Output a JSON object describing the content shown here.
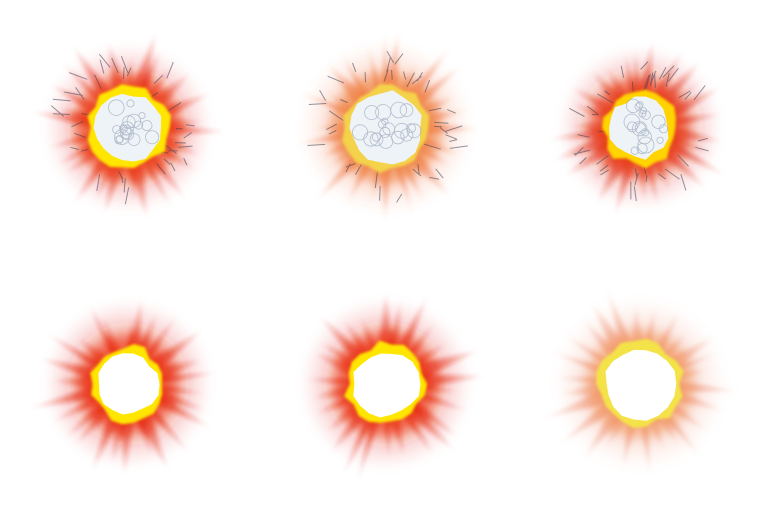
{
  "sprite_sheet": {
    "rows": 2,
    "columns": 3,
    "background": "#ffffff",
    "frames": [
      {
        "style": "textured-core",
        "glow": "#e21b0c",
        "mid": "#f04a14",
        "hot": "#ffe600",
        "core": "#eef3f8",
        "crackle": "#3b3f55",
        "texture": true
      },
      {
        "style": "textured-core",
        "glow": "#ef6b3a",
        "mid": "#f08a45",
        "hot": "#f4d24a",
        "core": "#eef3f8",
        "crackle": "#3b3f55",
        "texture": true
      },
      {
        "style": "textured-core",
        "glow": "#dd2010",
        "mid": "#ee4818",
        "hot": "#ffd400",
        "core": "#eef3f8",
        "crackle": "#3b3f55",
        "texture": true
      },
      {
        "style": "smooth-core",
        "glow": "#e21b0c",
        "mid": "#f03a10",
        "hot": "#ffe600",
        "core": "#ffffff",
        "texture": false
      },
      {
        "style": "smooth-core",
        "glow": "#e21b0c",
        "mid": "#f03a10",
        "hot": "#ffe600",
        "core": "#ffffff",
        "texture": false
      },
      {
        "style": "smooth-core",
        "glow": "#ee8a6a",
        "mid": "#f4a060",
        "hot": "#f4e24a",
        "core": "#ffffff",
        "texture": false
      }
    ]
  }
}
